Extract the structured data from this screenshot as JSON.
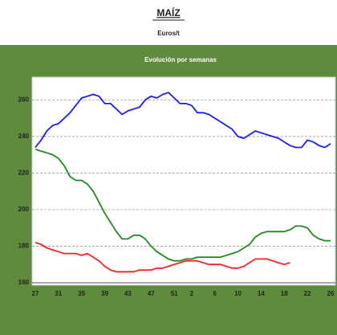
{
  "chart_data": {
    "type": "line",
    "title": "MAÍZ",
    "subtitle": "Euros/t",
    "plot_title": "Evolución por semanas",
    "categories": [
      27,
      null,
      null,
      null,
      31,
      null,
      null,
      null,
      35,
      null,
      null,
      null,
      39,
      null,
      null,
      null,
      43,
      null,
      null,
      null,
      47,
      null,
      null,
      null,
      51,
      null,
      null,
      2,
      null,
      null,
      null,
      6,
      null,
      null,
      null,
      10,
      null,
      null,
      null,
      14,
      null,
      null,
      null,
      18,
      null,
      null,
      null,
      22,
      null,
      null,
      null,
      26
    ],
    "series": [
      {
        "color": "#1a1aff",
        "values": [
          234,
          238,
          243,
          246,
          247,
          250,
          253,
          257,
          261,
          262,
          263,
          262,
          258,
          258,
          255,
          252,
          254,
          255,
          256,
          260,
          262,
          261,
          263,
          264,
          261,
          258,
          258,
          257,
          253,
          253,
          252,
          250,
          248,
          246,
          244,
          240,
          239,
          241,
          243,
          242,
          241,
          240,
          239,
          237,
          235,
          234,
          234,
          238,
          237,
          235,
          234,
          236
        ]
      },
      {
        "color": "#1e8a1e",
        "values": [
          233,
          232,
          231,
          230,
          228,
          224,
          218,
          216,
          216,
          214,
          210,
          204,
          198,
          193,
          188,
          184,
          184,
          186,
          186,
          184,
          180,
          177,
          175,
          173,
          172,
          172,
          173,
          173,
          174,
          174,
          174,
          174,
          174,
          175,
          176,
          177,
          179,
          181,
          185,
          187,
          188,
          188,
          188,
          188,
          189,
          191,
          191,
          190,
          186,
          184,
          183,
          183
        ]
      },
      {
        "color": "#ff1f1f",
        "values": [
          182,
          181,
          179,
          178,
          177,
          176,
          176,
          176,
          175,
          176,
          174,
          172,
          169,
          167,
          166,
          166,
          166,
          166,
          167,
          167,
          167,
          168,
          168,
          169,
          170,
          171,
          172,
          172,
          172,
          171,
          170,
          170,
          170,
          169,
          168,
          168,
          169,
          171,
          173,
          173,
          173,
          172,
          171,
          170,
          171,
          null,
          null,
          null,
          null,
          null,
          null,
          null
        ]
      }
    ],
    "ylim": [
      160,
      272
    ],
    "yticks": [
      160,
      180,
      200,
      220,
      240,
      260
    ],
    "grid": true
  }
}
